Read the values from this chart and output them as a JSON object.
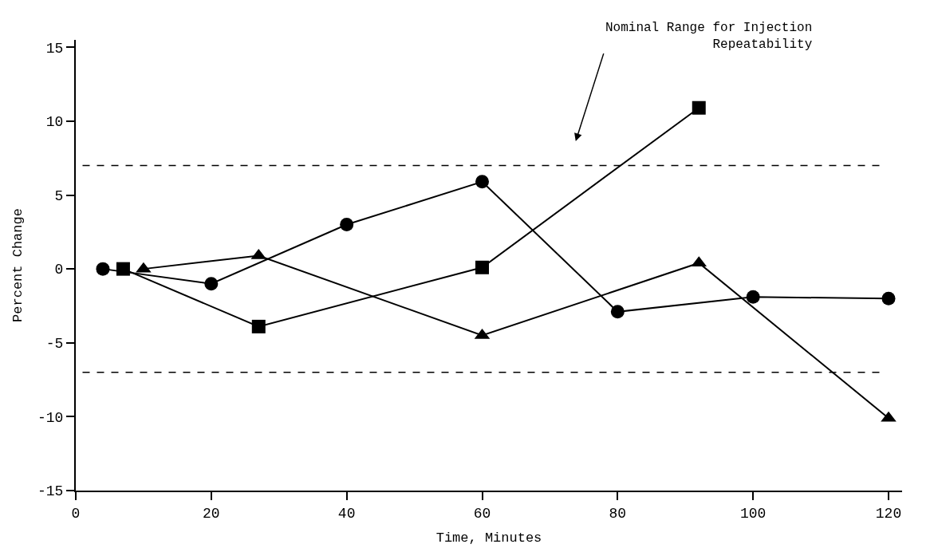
{
  "chart_data": {
    "type": "line",
    "xlabel": "Time, Minutes",
    "ylabel": "Percent Change",
    "xlim": [
      0,
      122
    ],
    "xticks": [
      0,
      20,
      40,
      60,
      80,
      100,
      120
    ],
    "ylim": [
      -15,
      15.5
    ],
    "yticks": [
      -15,
      -10,
      -5,
      0,
      5,
      10,
      15
    ],
    "line_style": "solid",
    "series": [
      {
        "color": "#000000",
        "marker": "circle",
        "x": [
          4,
          20,
          40,
          60,
          80,
          100,
          120
        ],
        "values": [
          0,
          -1,
          3,
          5.9,
          -2.9,
          -1.9,
          -2
        ]
      },
      {
        "color": "#000000",
        "marker": "square",
        "x": [
          7,
          27,
          60,
          92
        ],
        "values": [
          0,
          -3.9,
          0.1,
          10.9
        ]
      },
      {
        "color": "#000000",
        "marker": "triangle",
        "x": [
          10,
          27,
          60,
          92,
          120
        ],
        "values": [
          0,
          0.9,
          -4.5,
          0.4,
          -10.1
        ]
      }
    ],
    "ref_lines": [
      {
        "axis": "y",
        "value": 7,
        "line_style": "dashed",
        "color": "#000000"
      },
      {
        "axis": "y",
        "value": -7,
        "line_style": "dashed",
        "color": "#000000"
      }
    ],
    "annotations": [
      "Nominal Range for Injection\nRepeatability"
    ]
  }
}
